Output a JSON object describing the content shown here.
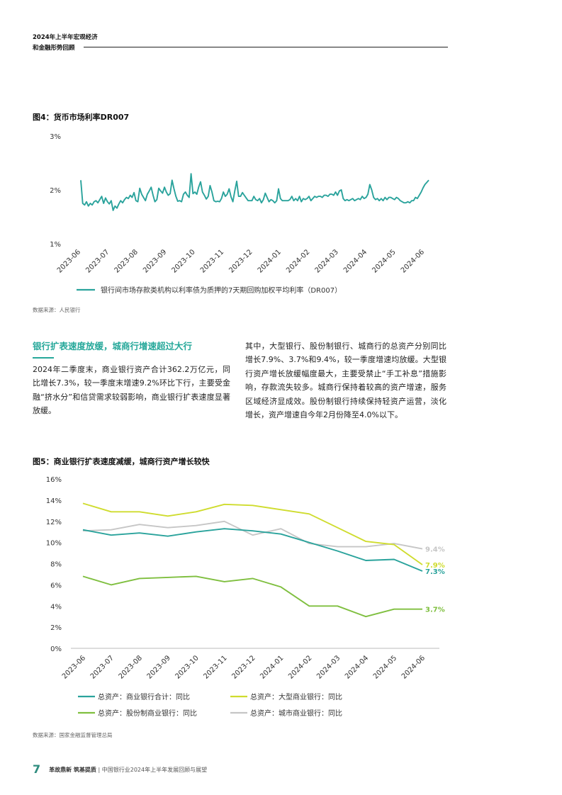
{
  "header": {
    "line1": "2024年上半年宏观经济",
    "line2": "和金融形势回顾"
  },
  "figure4": {
    "title": "图4：货币市场利率DR007",
    "source": "数据来源：人民银行",
    "chart_data": {
      "type": "line",
      "title": "图4：货币市场利率DR007",
      "y_ticks": [
        "3%",
        "2%",
        "1%"
      ],
      "ylim": [
        1,
        3
      ],
      "x_ticks": [
        "2023-06",
        "2023-07",
        "2023-08",
        "2023-09",
        "2023-10",
        "2023-11",
        "2023-12",
        "2024-01",
        "2024-02",
        "2024-03",
        "2024-04",
        "2024-05",
        "2024-06"
      ],
      "grid": false,
      "legend": "bottom",
      "series": [
        {
          "name": "银行间市场存款类机构以利率债为质押的7天期回购加权平均利率（DR007）",
          "color": "#2aa39c",
          "values": [
            2.18,
            1.75,
            1.72,
            1.78,
            1.7,
            1.75,
            1.72,
            1.78,
            1.8,
            1.76,
            1.82,
            1.88,
            1.75,
            1.85,
            1.78,
            1.74,
            1.8,
            1.62,
            1.7,
            1.66,
            1.74,
            1.8,
            1.76,
            1.82,
            1.86,
            1.84,
            1.9,
            1.86,
            1.95,
            1.8,
            1.78,
            2.03,
            1.92,
            1.86,
            1.8,
            1.92,
            1.98,
            2.05,
            1.9,
            1.78,
            1.82,
            2.03,
            1.98,
            1.94,
            2.05,
            1.96,
            1.9,
            1.93,
            2.18,
            2.02,
            1.88,
            1.79,
            1.8,
            1.78,
            1.92,
            1.96,
            1.9,
            1.86,
            2.3,
            1.93,
            1.96,
            1.92,
            2.05,
            2.15,
            1.96,
            1.9,
            1.83,
            1.88,
            2.08,
            1.96,
            1.8,
            1.78,
            1.79,
            1.78,
            1.84,
            1.96,
            1.88,
            1.92,
            2.02,
            1.87,
            1.78,
            1.98,
            2.16,
            1.88,
            1.88,
            1.95,
            1.9,
            1.85,
            1.8,
            1.8,
            1.8,
            1.88,
            1.82,
            1.8,
            1.84,
            1.76,
            1.82,
            1.94,
            1.86,
            1.78,
            1.82,
            1.8,
            1.76,
            1.8,
            2.02,
            1.84,
            1.8,
            1.8,
            1.8,
            1.8,
            1.82,
            1.88,
            1.8,
            1.84,
            1.8,
            1.88,
            1.78,
            1.84,
            1.82,
            1.84,
            1.88,
            1.8,
            1.84,
            1.88,
            1.86,
            1.88,
            1.88,
            1.86,
            1.9,
            1.9,
            1.88,
            1.92,
            1.92,
            1.9,
            1.96,
            1.9,
            1.98,
            2.0,
            1.84,
            1.8,
            1.82,
            1.8,
            1.82,
            1.84,
            1.8,
            1.82,
            1.84,
            1.82,
            1.88,
            1.84,
            1.86,
            1.92,
            2.1,
            2.0,
            1.86,
            1.82,
            1.84,
            1.8,
            1.84,
            1.8,
            1.86,
            1.82,
            1.86,
            1.86,
            1.84,
            1.82,
            1.86,
            1.84,
            1.8,
            1.78,
            1.76,
            1.76,
            1.78,
            1.76,
            1.8,
            1.8,
            1.86,
            1.84,
            1.9,
            1.96,
            2.04,
            2.1,
            2.14,
            2.18
          ]
        }
      ]
    }
  },
  "section": {
    "heading": "银行扩表速度放缓，城商行增速超过大行",
    "para_left": "2024年二季度末，商业银行资产合计362.2万亿元，同比增长7.3%，较一季度末增速9.2%环比下行，主要受金融“挤水分”和信贷需求较弱影响，商业银行扩表速度显著放缓。",
    "para_right": "其中，大型银行、股份制银行、城商行的总资产分别同比增长7.9%、3.7%和9.4%，较一季度增速均放缓。大型银行资产增长放缓幅度最大，主要受禁止“手工补息”措施影响，存款流失较多。城商行保持着较高的资产增速，服务区域经济显成效。股份制银行持续保持轻资产运营，淡化增长，资产增速自今年2月份降至4.0%以下。"
  },
  "figure5": {
    "title": "图5：商业银行扩表速度减缓，城商行资产增长较快",
    "source": "数据来源：国家金融监督管理总局",
    "chart_data": {
      "type": "line",
      "title": "图5：商业银行扩表速度减缓，城商行资产增长较快",
      "y_ticks": [
        "16%",
        "14%",
        "12%",
        "10%",
        "8%",
        "6%",
        "4%",
        "2%",
        "0%"
      ],
      "ylim": [
        0,
        16
      ],
      "categories": [
        "2023-06",
        "2023-07",
        "2023-08",
        "2023-09",
        "2023-10",
        "2023-11",
        "2023-12",
        "2024-01",
        "2024-02",
        "2024-03",
        "2024-04",
        "2024-05",
        "2024-06"
      ],
      "grid": false,
      "legend": "bottom",
      "series": [
        {
          "name": "总资产：商业银行合计：同比",
          "color": "#2aa39c",
          "values": [
            11.2,
            10.7,
            10.9,
            10.6,
            11.0,
            11.3,
            11.1,
            10.8,
            10.0,
            9.2,
            8.3,
            8.4,
            7.3
          ],
          "end_label": "7.3%"
        },
        {
          "name": "总资产：大型商业银行：同比",
          "color": "#cfdc2e",
          "values": [
            13.7,
            12.9,
            12.9,
            12.5,
            12.9,
            13.6,
            13.5,
            13.1,
            12.7,
            11.4,
            10.1,
            9.8,
            7.9
          ],
          "end_label": "7.9%"
        },
        {
          "name": "总资产：股份制商业银行：同比",
          "color": "#7fbf3f",
          "values": [
            6.8,
            6.0,
            6.6,
            6.7,
            6.8,
            6.3,
            6.6,
            5.8,
            4.0,
            4.0,
            3.0,
            3.7,
            3.7
          ],
          "end_label": "3.7%"
        },
        {
          "name": "总资产：城市商业银行：同比",
          "color": "#c6c6c6",
          "values": [
            11.1,
            11.2,
            11.7,
            11.4,
            11.6,
            12.0,
            10.7,
            11.3,
            9.9,
            9.6,
            9.6,
            9.9,
            9.4
          ],
          "end_label": "9.4%"
        }
      ]
    }
  },
  "footer": {
    "page_number": "7",
    "brand": "革故鼎新 筑基提质",
    "separator": "|",
    "report_title": "中国银行业2024年上半年发展回顾与展望"
  }
}
